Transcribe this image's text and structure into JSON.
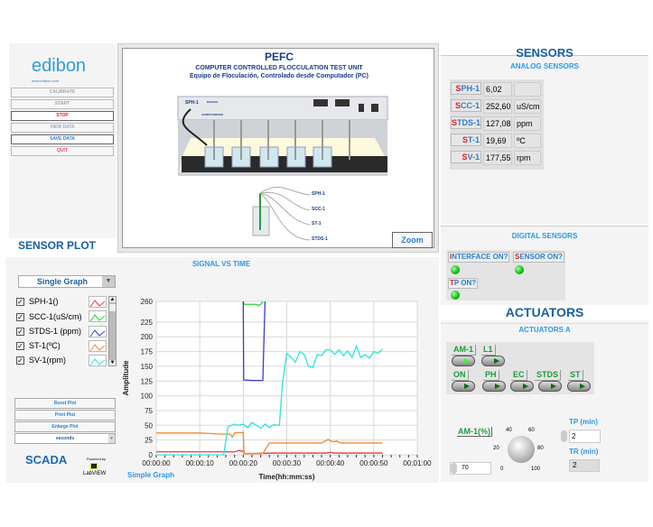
{
  "left_panel": {
    "logo": "edibon",
    "logo_url": "www.edibon.com",
    "buttons": [
      {
        "label": "CALIBRATE",
        "color": "#9ab"
      },
      {
        "label": "START",
        "color": "#9a9"
      },
      {
        "label": "STOP",
        "color": "#e02020"
      },
      {
        "label": "VIEW DATA",
        "color": "#9ab"
      },
      {
        "label": "SAVE DATA",
        "color": "#2a7fd0"
      },
      {
        "label": "QUIT",
        "color": "#e05060"
      }
    ]
  },
  "unit_panel": {
    "title": "PEFC",
    "subtitle": "COMPUTER CONTROLLED FLOCCULATION TEST UNIT",
    "subtitle_es": "Equipo de Floculación, Controlado desde Computador (PC)",
    "sph_label": "SPH-1",
    "manual_label": "MANUAL",
    "computerized_label": "COMPUTERIZED",
    "probe_labels": [
      "SPH-1",
      "SCC-1",
      "ST-1",
      "STDS-1"
    ],
    "zoom_button": "Zoom"
  },
  "sensors": {
    "title": "SENSORS",
    "analog_title": "ANALOG SENSORS",
    "analog": [
      {
        "first": "S",
        "rest": "PH-1",
        "value": "6,02",
        "unit": ""
      },
      {
        "first": "S",
        "rest": "CC-1",
        "value": "252,60",
        "unit": "uS/cm"
      },
      {
        "first": "S",
        "rest": "TDS-1",
        "value": "127,08",
        "unit": "ppm"
      },
      {
        "first": "S",
        "rest": "T-1",
        "value": "19,69",
        "unit": "ºC"
      },
      {
        "first": "S",
        "rest": "V-1",
        "value": "177,55",
        "unit": "rpm"
      }
    ],
    "digital_title": "DIGITAL SENSORS",
    "digital": [
      {
        "first": "I",
        "rest": "NTERFACE ON?",
        "on": true
      },
      {
        "first": "S",
        "rest": "ENSOR ON?",
        "on": true
      },
      {
        "first": "T",
        "rest": "P ON?",
        "on": true
      }
    ]
  },
  "actuators": {
    "title": "ACTUATORS",
    "subtitle": "ACTUATORS A",
    "toggles": [
      {
        "label": "AM-1",
        "on": true
      },
      {
        "label": "L1",
        "on": false
      },
      {
        "label": "ON",
        "on": false
      },
      {
        "label": "PH",
        "on": false
      },
      {
        "label": "EC",
        "on": false
      },
      {
        "label": "STDS",
        "on": false
      },
      {
        "label": "ST",
        "on": false
      }
    ],
    "am1_label": "AM-1(%)",
    "am1_value": "70",
    "knob_scale": [
      "0",
      "20",
      "40",
      "60",
      "80",
      "100"
    ],
    "tp_label": "TP (min)",
    "tp_value": "2",
    "tr_label": "TR (min)",
    "tr_value": "2"
  },
  "sensor_plot": {
    "title": "SENSOR PLOT",
    "graph_title": "SIGNAL VS TIME",
    "mode_select": "Single Graph",
    "legend": [
      {
        "label": "SPH-1()",
        "color": "#e8393a",
        "checked": true
      },
      {
        "label": "SCC-1(uS/cm)",
        "color": "#28d428",
        "checked": true
      },
      {
        "label": "STDS-1 (ppm)",
        "color": "#3c3cd0",
        "checked": true
      },
      {
        "label": "ST-1(ºC)",
        "color": "#f08a30",
        "checked": true
      },
      {
        "label": "SV-1(rpm)",
        "color": "#29e6e0",
        "checked": true
      }
    ],
    "buttons": [
      "Reset Plot",
      "Print Plot",
      "Enlarge Plot"
    ],
    "units_select": "seconds",
    "graph_mode_label": "Simple Graph",
    "powered_by": "Powered by",
    "labview": "LabVIEW",
    "scada": "SCADA"
  },
  "chart_data": {
    "type": "line",
    "xlabel": "Time(hh:mm:ss)",
    "ylabel": "Amplitude",
    "xlim": [
      0,
      60
    ],
    "ylim": [
      0,
      260
    ],
    "x_ticks": [
      "00:00:00",
      "00:00:10",
      "00:00:20",
      "00:00:30",
      "00:00:40",
      "00:00:50",
      "00:01:00"
    ],
    "y_ticks": [
      "0",
      "25",
      "50",
      "75",
      "100",
      "125",
      "150",
      "175",
      "200",
      "225",
      "260"
    ],
    "grid": true,
    "series": [
      {
        "name": "SPH-1()",
        "color": "#e8393a",
        "points": [
          [
            0,
            5
          ],
          [
            18,
            5
          ],
          [
            19,
            7
          ],
          [
            20,
            6
          ],
          [
            20.3,
            2
          ],
          [
            27,
            3
          ],
          [
            39,
            3
          ],
          [
            40,
            4
          ],
          [
            41,
            3
          ],
          [
            52,
            3
          ]
        ]
      },
      {
        "name": "SCC-1(uS/cm)",
        "color": "#28d428",
        "points": [
          [
            20,
            260
          ],
          [
            20.2,
            255
          ],
          [
            23,
            255
          ],
          [
            23.5,
            253
          ],
          [
            24,
            255
          ],
          [
            24.5,
            260
          ]
        ]
      },
      {
        "name": "STDS-1 (ppm)",
        "color": "#3c3cd0",
        "points": [
          [
            20,
            260
          ],
          [
            20.1,
            127
          ],
          [
            22,
            126
          ],
          [
            24.5,
            126
          ],
          [
            24.7,
            180
          ],
          [
            25,
            260
          ]
        ]
      },
      {
        "name": "ST-1(ºC)",
        "color": "#f08a30",
        "points": [
          [
            0,
            37
          ],
          [
            10,
            37
          ],
          [
            15,
            35
          ],
          [
            17,
            35
          ],
          [
            17.5,
            30
          ],
          [
            18,
            37
          ],
          [
            20,
            38
          ],
          [
            20.2,
            2
          ],
          [
            24.5,
            2
          ],
          [
            26,
            20
          ],
          [
            38,
            20
          ],
          [
            39.5,
            26
          ],
          [
            40.5,
            22
          ],
          [
            41.5,
            23
          ],
          [
            42.5,
            20
          ],
          [
            52,
            20
          ]
        ]
      },
      {
        "name": "SV-1(rpm)",
        "color": "#29e6e0",
        "points": [
          [
            0,
            0
          ],
          [
            15.5,
            0
          ],
          [
            16.5,
            48
          ],
          [
            18,
            52
          ],
          [
            19,
            50
          ],
          [
            20,
            52
          ],
          [
            21,
            46
          ],
          [
            22,
            55
          ],
          [
            23,
            50
          ],
          [
            24,
            45
          ],
          [
            25,
            52
          ],
          [
            26,
            46
          ],
          [
            27,
            51
          ],
          [
            28.3,
            50
          ],
          [
            29,
            120
          ],
          [
            30,
            172
          ],
          [
            31,
            165
          ],
          [
            32,
            157
          ],
          [
            33,
            175
          ],
          [
            34,
            170
          ],
          [
            35,
            150
          ],
          [
            36,
            148
          ],
          [
            37,
            170
          ],
          [
            38,
            168
          ],
          [
            39,
            178
          ],
          [
            40,
            178
          ],
          [
            41,
            170
          ],
          [
            42,
            178
          ],
          [
            43,
            168
          ],
          [
            44,
            176
          ],
          [
            45,
            165
          ],
          [
            46,
            184
          ],
          [
            47,
            165
          ],
          [
            48,
            170
          ],
          [
            49,
            164
          ],
          [
            50,
            175
          ],
          [
            51,
            172
          ],
          [
            52,
            179
          ]
        ]
      }
    ]
  }
}
